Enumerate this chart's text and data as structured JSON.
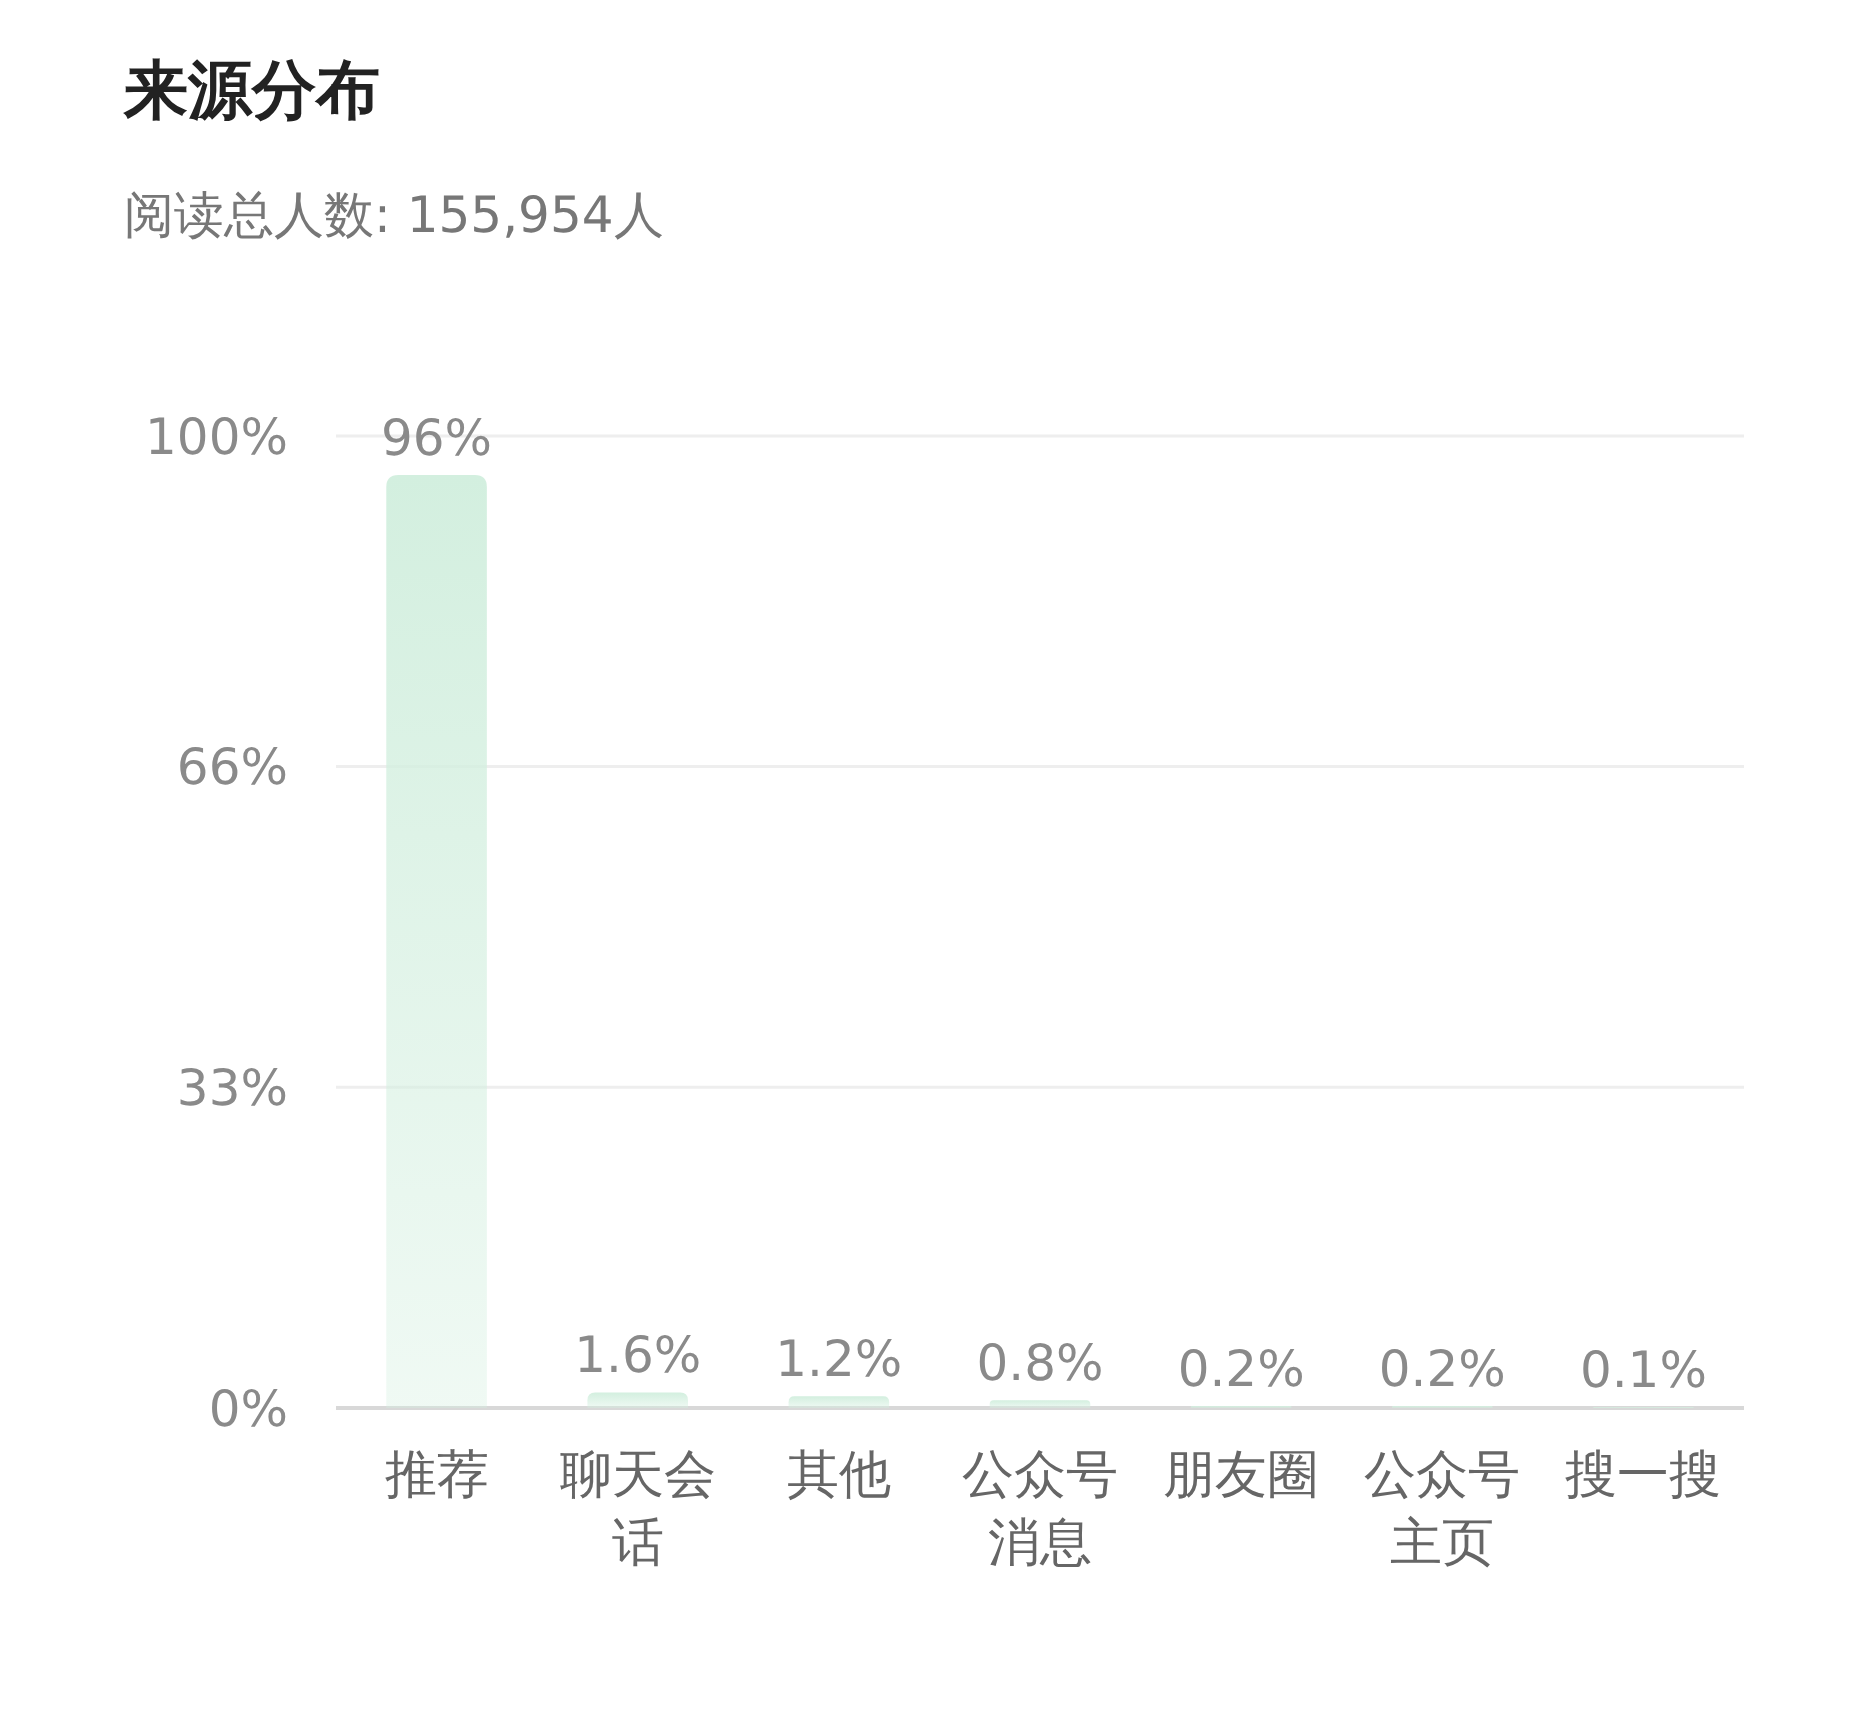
{
  "chart_data": {
    "type": "bar",
    "title": "来源分布",
    "subtitle": "阅读总人数: 155,954人",
    "categories": [
      "推荐",
      "聊天会话",
      "其他",
      "公众号消息",
      "朋友圈",
      "公众号主页",
      "搜一搜"
    ],
    "values": [
      96,
      1.6,
      1.2,
      0.8,
      0.2,
      0.2,
      0.1
    ],
    "value_labels": [
      "96%",
      "1.6%",
      "1.2%",
      "0.8%",
      "0.2%",
      "0.2%",
      "0.1%"
    ],
    "color": "#d3efdf",
    "ylim": [
      0,
      100
    ],
    "yticks": [
      {
        "value": 0,
        "label": "0%"
      },
      {
        "value": 33,
        "label": "33%"
      },
      {
        "value": 66,
        "label": "66%"
      },
      {
        "value": 100,
        "label": "100%"
      }
    ],
    "grid": "y"
  }
}
